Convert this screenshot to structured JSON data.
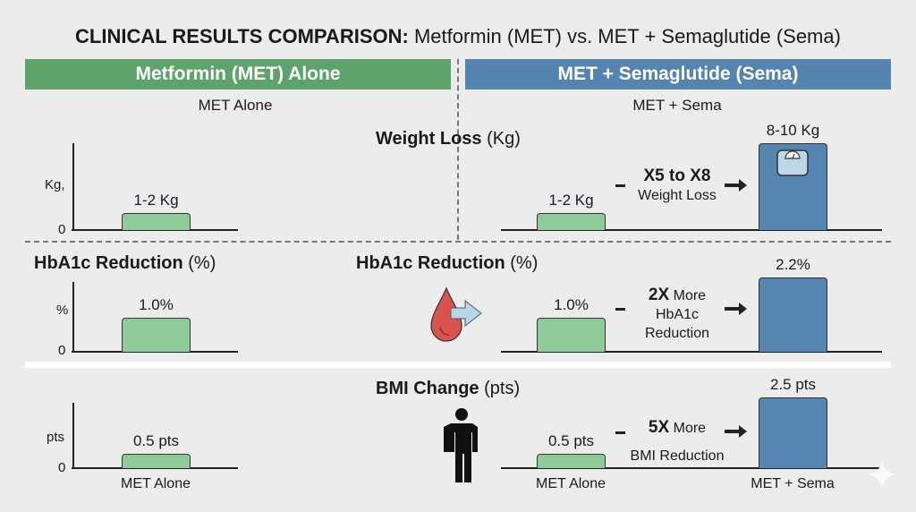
{
  "title": {
    "bold": "CLINICAL RESULTS COMPARISON:",
    "regular": "Metformin (MET) vs. MET + Semaglutide (Sema)"
  },
  "headers": {
    "left": "Metformin (MET) Alone",
    "right": "MET + Semaglutide (Sema)"
  },
  "subheaders": {
    "left": "MET Alone",
    "right": "MET + Sema"
  },
  "colors": {
    "met_header": "#5ea26c",
    "sema_header": "#5584ae",
    "met_bar": "#8fcb98",
    "sema_bar": "#5585b0",
    "drop": "#d9534f"
  },
  "icons": [
    "scale-icon",
    "blood-drop-icon",
    "arrow-right-icon",
    "person-icon",
    "sparkle-icon"
  ],
  "chart_data": [
    {
      "type": "bar",
      "title_bold": "Weight Loss",
      "title_unit": "(Kg)",
      "ylabel": "Kg,",
      "y_tick": "0",
      "categories": [
        "MET Alone",
        "MET + Sema"
      ],
      "values": [
        [
          1,
          2
        ],
        [
          8,
          10
        ]
      ],
      "data_labels": [
        "1-2 Kg",
        "8-10 Kg"
      ],
      "annotation": {
        "bold": "X5 to X8",
        "text": "Weight Loss"
      }
    },
    {
      "type": "bar",
      "title_bold": "HbA1c Reduction",
      "title_unit": "(%)",
      "ylabel": "%",
      "y_tick": "0",
      "categories": [
        "MET Alone",
        "MET + Sema"
      ],
      "values": [
        1.0,
        2.2
      ],
      "data_labels": [
        "1.0%",
        "2.2%"
      ],
      "annotation": {
        "bold": "2X",
        "text": "More",
        "text2": "HbA1c",
        "text3": "Reduction"
      }
    },
    {
      "type": "bar",
      "title_bold": "BMI Change",
      "title_unit": "(pts)",
      "ylabel": "pts",
      "y_tick": "0",
      "categories": [
        "MET Alone",
        "MET + Sema"
      ],
      "values": [
        0.5,
        2.5
      ],
      "data_labels": [
        "0.5 pts",
        "2.5 pts"
      ],
      "annotation": {
        "bold": "5X",
        "text": "More",
        "text2": "BMI Reduction"
      }
    }
  ]
}
